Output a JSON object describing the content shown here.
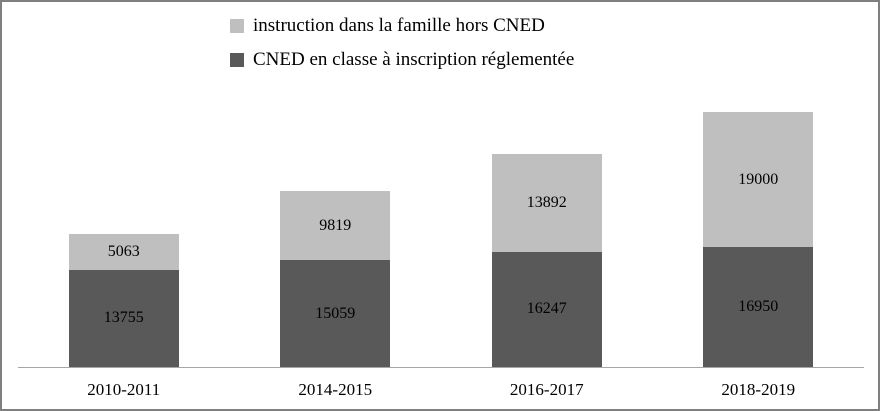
{
  "chart_data": {
    "type": "bar",
    "stacked": true,
    "title": "",
    "xlabel": "",
    "ylabel": "",
    "grid": false,
    "legend_position": "top",
    "ylim": [
      0,
      36000
    ],
    "categories": [
      "2010-2011",
      "2014-2015",
      "2016-2017",
      "2018-2019"
    ],
    "series": [
      {
        "name": "CNED en classe à inscription réglementée",
        "color": "#595959",
        "values": [
          13755,
          15059,
          16247,
          16950
        ]
      },
      {
        "name": "instruction dans la famille hors CNED",
        "color": "#bfbfbf",
        "values": [
          5063,
          9819,
          13892,
          19000
        ]
      }
    ]
  },
  "legend": {
    "items": [
      {
        "label": "instruction dans la famille hors CNED",
        "color": "#bfbfbf"
      },
      {
        "label": "CNED en classe à inscription réglementée",
        "color": "#595959"
      }
    ]
  }
}
